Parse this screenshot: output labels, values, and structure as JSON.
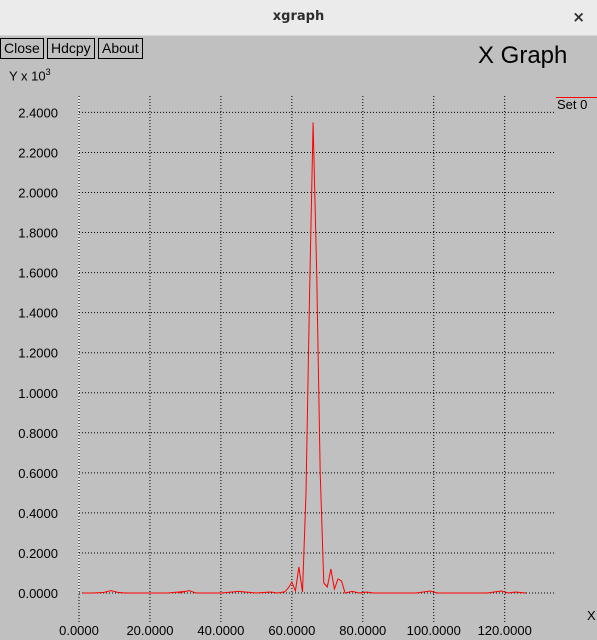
{
  "window": {
    "title": "xgraph",
    "close_glyph": "×"
  },
  "toolbar": {
    "close_label": "Close",
    "hdcpy_label": "Hdcpy",
    "about_label": "About"
  },
  "chart_data": {
    "type": "line",
    "title": "X Graph",
    "ylabel_prefix": "Y x 10",
    "ylabel_exponent": "3",
    "xlabel": "X",
    "xlim": [
      0,
      128
    ],
    "ylim": [
      0,
      2.4
    ],
    "x_ticks": [
      "0.0000",
      "20.0000",
      "40.0000",
      "60.0000",
      "80.0000",
      "100.0000",
      "120.0000"
    ],
    "y_ticks": [
      "0.0000",
      "0.2000",
      "0.4000",
      "0.6000",
      "0.8000",
      "1.0000",
      "1.2000",
      "1.4000",
      "1.6000",
      "1.8000",
      "2.0000",
      "2.2000",
      "2.4000"
    ],
    "grid": true,
    "legend_position": "top-right",
    "series": [
      {
        "name": "Set 0",
        "color": "#ff0000",
        "x": [
          1,
          4,
          7,
          9,
          11,
          13,
          15,
          20,
          25,
          30,
          28,
          31,
          33,
          35,
          40,
          45,
          50,
          54,
          56,
          58,
          59,
          60,
          61,
          62,
          63,
          64,
          65,
          66,
          67,
          68,
          69,
          70,
          71,
          72,
          73,
          74,
          75,
          77,
          79,
          81,
          83,
          87,
          91,
          95,
          99,
          101,
          103,
          106,
          110,
          115,
          119,
          121,
          123,
          126
        ],
        "y": [
          0.0,
          0.0,
          0.003,
          0.012,
          0.003,
          0.0,
          0.0,
          0.0,
          0.0,
          0.008,
          0.0,
          0.012,
          0.0,
          0.0,
          0.0,
          0.008,
          0.0,
          0.005,
          0.0,
          0.006,
          0.025,
          0.055,
          0.01,
          0.13,
          0.005,
          0.5,
          1.5,
          2.35,
          1.6,
          0.6,
          0.05,
          0.03,
          0.12,
          0.02,
          0.07,
          0.06,
          0.0,
          0.008,
          0.0,
          0.005,
          0.0,
          0.0,
          0.0,
          0.0,
          0.01,
          0.0,
          0.0,
          0.0,
          0.0,
          0.0,
          0.01,
          0.0,
          0.005,
          0.0
        ]
      }
    ]
  }
}
